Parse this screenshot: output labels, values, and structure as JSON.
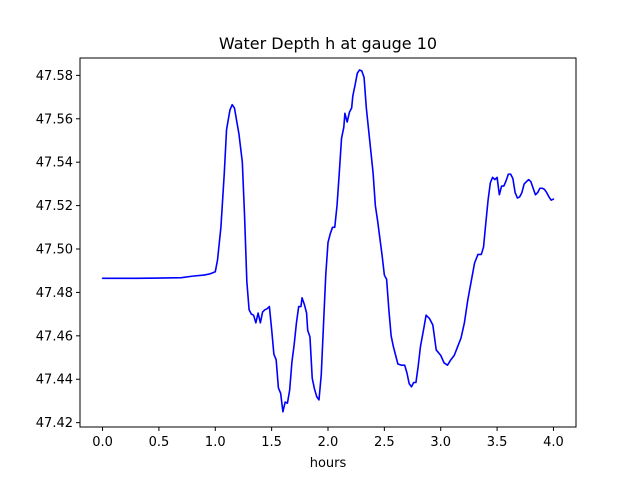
{
  "chart_data": {
    "type": "line",
    "title": "Water Depth h at gauge 10",
    "xlabel": "hours",
    "ylabel": "",
    "xlim": [
      -0.2,
      4.2
    ],
    "ylim": [
      47.418,
      47.588
    ],
    "xticks": [
      0.0,
      0.5,
      1.0,
      1.5,
      2.0,
      2.5,
      3.0,
      3.5,
      4.0
    ],
    "xtick_labels": [
      "0.0",
      "0.5",
      "1.0",
      "1.5",
      "2.0",
      "2.5",
      "3.0",
      "3.5",
      "4.0"
    ],
    "yticks": [
      47.42,
      47.44,
      47.46,
      47.48,
      47.5,
      47.52,
      47.54,
      47.56,
      47.58
    ],
    "ytick_labels": [
      "47.42",
      "47.44",
      "47.46",
      "47.48",
      "47.50",
      "47.52",
      "47.54",
      "47.56",
      "47.58"
    ],
    "grid": false,
    "legend": "none",
    "series": [
      {
        "color": "#0000ff",
        "points": [
          [
            0.0,
            47.4865
          ],
          [
            0.3,
            47.4865
          ],
          [
            0.5,
            47.4866
          ],
          [
            0.7,
            47.4868
          ],
          [
            0.8,
            47.4875
          ],
          [
            0.9,
            47.488
          ],
          [
            0.95,
            47.4885
          ],
          [
            1.0,
            47.4895
          ],
          [
            1.02,
            47.495
          ],
          [
            1.05,
            47.51
          ],
          [
            1.08,
            47.535
          ],
          [
            1.1,
            47.555
          ],
          [
            1.13,
            47.564
          ],
          [
            1.15,
            47.5665
          ],
          [
            1.17,
            47.565
          ],
          [
            1.19,
            47.559
          ],
          [
            1.21,
            47.553
          ],
          [
            1.24,
            47.54
          ],
          [
            1.26,
            47.515
          ],
          [
            1.28,
            47.485
          ],
          [
            1.3,
            47.472
          ],
          [
            1.32,
            47.47
          ],
          [
            1.34,
            47.4695
          ],
          [
            1.36,
            47.466
          ],
          [
            1.38,
            47.4705
          ],
          [
            1.4,
            47.466
          ],
          [
            1.42,
            47.471
          ],
          [
            1.44,
            47.472
          ],
          [
            1.46,
            47.4725
          ],
          [
            1.48,
            47.4735
          ],
          [
            1.5,
            47.463
          ],
          [
            1.52,
            47.4515
          ],
          [
            1.54,
            47.449
          ],
          [
            1.56,
            47.436
          ],
          [
            1.58,
            47.4335
          ],
          [
            1.6,
            47.425
          ],
          [
            1.62,
            47.4295
          ],
          [
            1.64,
            47.429
          ],
          [
            1.66,
            47.435
          ],
          [
            1.68,
            47.448
          ],
          [
            1.7,
            47.456
          ],
          [
            1.72,
            47.466
          ],
          [
            1.74,
            47.4735
          ],
          [
            1.76,
            47.4735
          ],
          [
            1.77,
            47.4775
          ],
          [
            1.79,
            47.4745
          ],
          [
            1.81,
            47.4705
          ],
          [
            1.82,
            47.4625
          ],
          [
            1.84,
            47.4595
          ],
          [
            1.86,
            47.4405
          ],
          [
            1.88,
            47.4355
          ],
          [
            1.9,
            47.432
          ],
          [
            1.92,
            47.4305
          ],
          [
            1.94,
            47.442
          ],
          [
            1.96,
            47.465
          ],
          [
            1.98,
            47.488
          ],
          [
            2.0,
            47.503
          ],
          [
            2.02,
            47.507
          ],
          [
            2.04,
            47.51
          ],
          [
            2.06,
            47.51
          ],
          [
            2.08,
            47.52
          ],
          [
            2.1,
            47.535
          ],
          [
            2.12,
            47.551
          ],
          [
            2.14,
            47.556
          ],
          [
            2.15,
            47.5625
          ],
          [
            2.17,
            47.5585
          ],
          [
            2.19,
            47.563
          ],
          [
            2.21,
            47.565
          ],
          [
            2.22,
            47.5705
          ],
          [
            2.24,
            47.5755
          ],
          [
            2.26,
            47.581
          ],
          [
            2.28,
            47.5825
          ],
          [
            2.3,
            47.582
          ],
          [
            2.32,
            47.579
          ],
          [
            2.34,
            47.565
          ],
          [
            2.36,
            47.555
          ],
          [
            2.38,
            47.545
          ],
          [
            2.4,
            47.535
          ],
          [
            2.42,
            47.52
          ],
          [
            2.44,
            47.513
          ],
          [
            2.46,
            47.505
          ],
          [
            2.48,
            47.497
          ],
          [
            2.5,
            47.488
          ],
          [
            2.52,
            47.486
          ],
          [
            2.54,
            47.472
          ],
          [
            2.56,
            47.46
          ],
          [
            2.58,
            47.455
          ],
          [
            2.6,
            47.451
          ],
          [
            2.62,
            47.447
          ],
          [
            2.65,
            47.4465
          ],
          [
            2.68,
            47.4465
          ],
          [
            2.7,
            47.443
          ],
          [
            2.72,
            47.438
          ],
          [
            2.74,
            47.4365
          ],
          [
            2.76,
            47.4385
          ],
          [
            2.78,
            47.4385
          ],
          [
            2.8,
            47.446
          ],
          [
            2.82,
            47.455
          ],
          [
            2.85,
            47.4635
          ],
          [
            2.87,
            47.4695
          ],
          [
            2.9,
            47.468
          ],
          [
            2.93,
            47.465
          ],
          [
            2.96,
            47.4535
          ],
          [
            3.0,
            47.451
          ],
          [
            3.03,
            47.4475
          ],
          [
            3.06,
            47.4465
          ],
          [
            3.09,
            47.449
          ],
          [
            3.12,
            47.451
          ],
          [
            3.15,
            47.455
          ],
          [
            3.18,
            47.459
          ],
          [
            3.21,
            47.466
          ],
          [
            3.24,
            47.4765
          ],
          [
            3.27,
            47.485
          ],
          [
            3.3,
            47.4935
          ],
          [
            3.33,
            47.4975
          ],
          [
            3.36,
            47.4975
          ],
          [
            3.38,
            47.501
          ],
          [
            3.4,
            47.512
          ],
          [
            3.42,
            47.5225
          ],
          [
            3.44,
            47.5305
          ],
          [
            3.46,
            47.533
          ],
          [
            3.48,
            47.532
          ],
          [
            3.5,
            47.533
          ],
          [
            3.52,
            47.525
          ],
          [
            3.54,
            47.529
          ],
          [
            3.56,
            47.529
          ],
          [
            3.58,
            47.5315
          ],
          [
            3.6,
            47.5345
          ],
          [
            3.62,
            47.5345
          ],
          [
            3.64,
            47.5325
          ],
          [
            3.66,
            47.526
          ],
          [
            3.68,
            47.5235
          ],
          [
            3.7,
            47.524
          ],
          [
            3.72,
            47.526
          ],
          [
            3.74,
            47.53
          ],
          [
            3.76,
            47.531
          ],
          [
            3.78,
            47.532
          ],
          [
            3.8,
            47.531
          ],
          [
            3.82,
            47.528
          ],
          [
            3.84,
            47.525
          ],
          [
            3.86,
            47.526
          ],
          [
            3.88,
            47.528
          ],
          [
            3.9,
            47.528
          ],
          [
            3.92,
            47.5275
          ],
          [
            3.94,
            47.526
          ],
          [
            3.96,
            47.524
          ],
          [
            3.98,
            47.5225
          ],
          [
            4.0,
            47.523
          ]
        ]
      }
    ]
  }
}
